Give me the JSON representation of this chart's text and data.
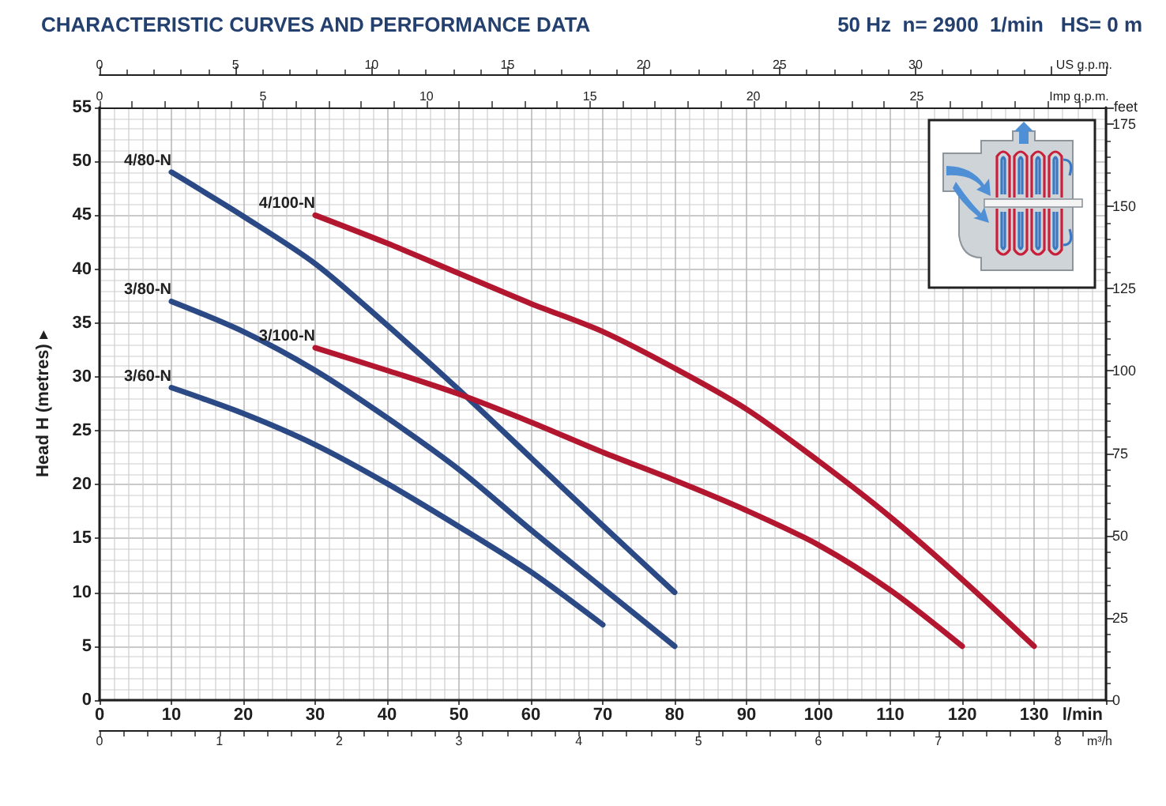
{
  "chart_data": {
    "type": "line",
    "title": "CHARACTERISTIC CURVES AND PERFORMANCE DATA",
    "subtitle": "50 Hz  n= 2900  1/min   HS= 0 m",
    "xlabel": "l/min",
    "ylabel": "Head H (metres) ▸",
    "y2label": "feet",
    "x2label": "US g.p.m.",
    "xlim": [
      0,
      140
    ],
    "xticks": [
      0,
      10,
      20,
      30,
      40,
      50,
      60,
      70,
      80,
      90,
      100,
      110,
      120,
      130
    ],
    "ylim": [
      0,
      55
    ],
    "yticks": [
      0,
      5,
      10,
      15,
      20,
      25,
      30,
      35,
      40,
      45,
      50,
      55
    ],
    "y2lim": [
      0,
      180
    ],
    "y2ticks": [
      0,
      25,
      50,
      75,
      100,
      125,
      150,
      175
    ],
    "x2lim": [
      0,
      37
    ],
    "x2ticks": [
      0,
      5,
      10,
      15,
      20,
      25,
      30
    ],
    "grid": true,
    "marker": "none",
    "line_style": "solid",
    "annotations": [
      "0",
      "5",
      "10",
      "15",
      "20",
      "25",
      "Imp g.p.m.",
      "0",
      "1",
      "2",
      "3",
      "4",
      "5",
      "6",
      "7",
      "8",
      "m³/h"
    ],
    "series": [
      {
        "name": "4/80-N",
        "color": "#2b4a85",
        "x": [
          10,
          20,
          30,
          40,
          50,
          60,
          70,
          80
        ],
        "values": [
          49,
          44.9,
          40.5,
          34.8,
          28.8,
          22.5,
          16.2,
          10
        ]
      },
      {
        "name": "3/80-N",
        "color": "#2b4a85",
        "x": [
          10,
          20,
          30,
          40,
          50,
          60,
          70,
          80
        ],
        "values": [
          37,
          34.2,
          30.6,
          26.2,
          21.4,
          15.8,
          10.4,
          5
        ]
      },
      {
        "name": "3/60-N",
        "color": "#2b4a85",
        "x": [
          10,
          20,
          30,
          40,
          50,
          60,
          70
        ],
        "values": [
          29,
          26.6,
          23.7,
          20.1,
          16.1,
          11.9,
          7
        ]
      },
      {
        "name": "4/100-N",
        "color": "#b3172f",
        "x": [
          30,
          40,
          50,
          60,
          70,
          80,
          90,
          100,
          110,
          120,
          130
        ],
        "values": [
          45,
          42.4,
          39.6,
          36.8,
          34.2,
          30.8,
          27,
          22.2,
          17,
          11.2,
          5
        ]
      },
      {
        "name": "3/100-N",
        "color": "#b3172f",
        "x": [
          30,
          40,
          50,
          60,
          70,
          80,
          90,
          100,
          110,
          120
        ],
        "values": [
          32.7,
          30.6,
          28.4,
          25.8,
          23,
          20.4,
          17.6,
          14.4,
          10.2,
          5
        ]
      }
    ]
  }
}
